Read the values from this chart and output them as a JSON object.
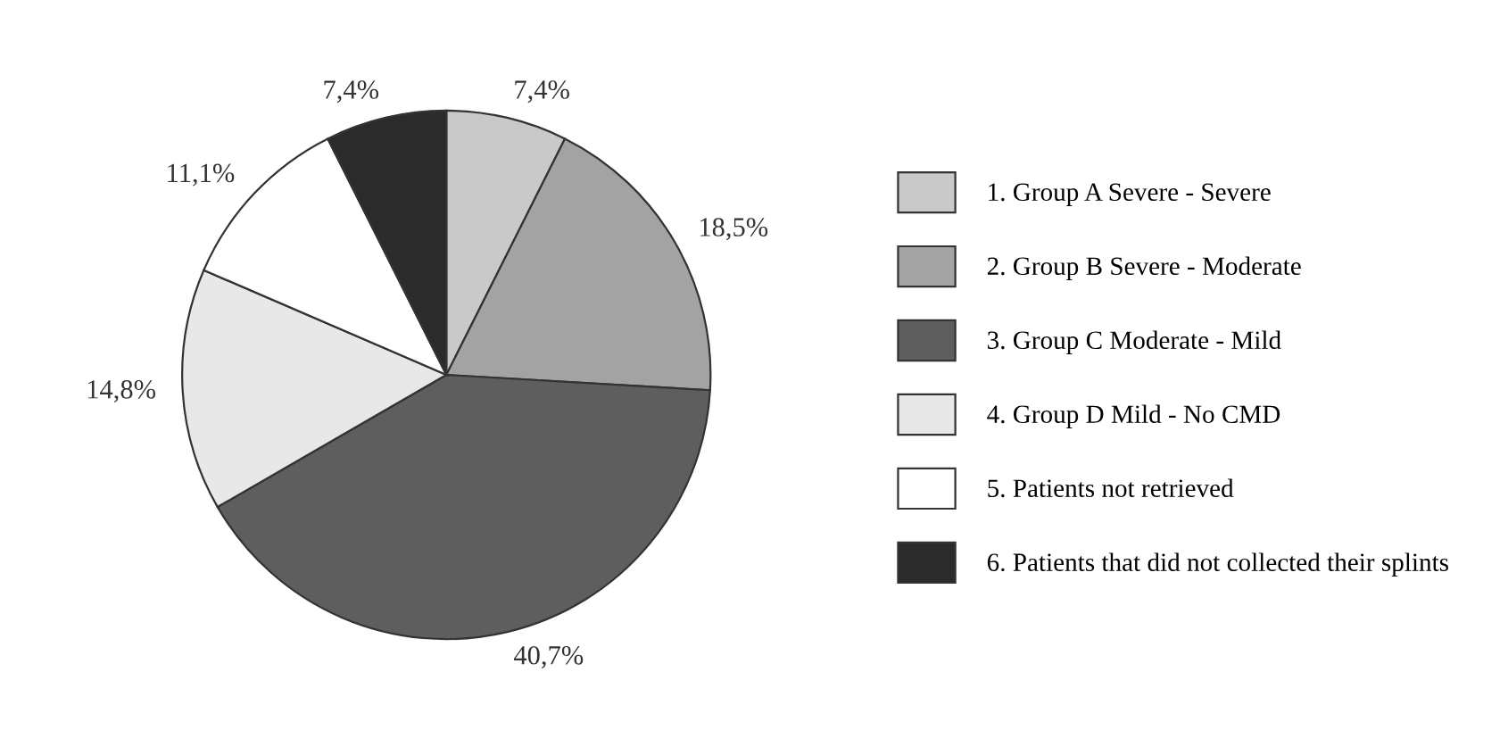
{
  "chart_data": {
    "type": "pie",
    "categories": [
      "1. Group A Severe - Severe",
      "2. Group B Severe - Moderate",
      "3. Group C Moderate - Mild",
      "4. Group D Mild - No CMD",
      "5. Patients not retrieved",
      "6. Patients that did not collected their splints"
    ],
    "values": [
      7.4,
      18.5,
      40.7,
      14.8,
      11.1,
      7.4
    ],
    "value_labels": [
      "7,4%",
      "18,5%",
      "40,7%",
      "14,8%",
      "11,1%",
      "7,4%"
    ],
    "colors": [
      "#c9c9c9",
      "#a3a3a3",
      "#5e5e5e",
      "#e8e8e8",
      "#ffffff",
      "#2b2b2b"
    ],
    "legend": "right"
  }
}
